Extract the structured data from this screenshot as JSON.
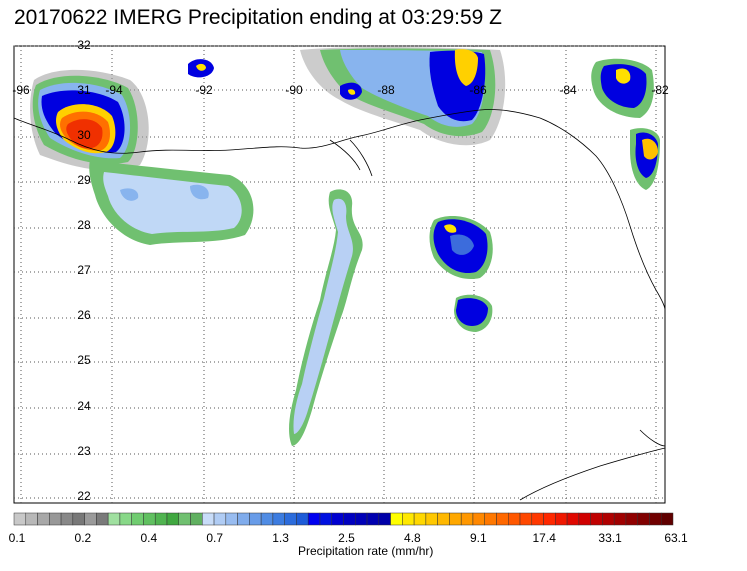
{
  "title": "20170622 IMERG Precipitation ending at 03:29:59 Z",
  "map": {
    "lon_labels": [
      "-96",
      "-94",
      "-92",
      "-90",
      "-88",
      "-86",
      "-84",
      "-82"
    ],
    "lat_labels": [
      "32",
      "31",
      "30",
      "29",
      "28",
      "27",
      "26",
      "25",
      "24",
      "23",
      "22"
    ]
  },
  "colorbar": {
    "title": "Precipitation rate (mm/hr)",
    "tick_labels": [
      "0.1",
      "0.2",
      "0.4",
      "0.7",
      "1.3",
      "2.5",
      "4.8",
      "9.1",
      "17.4",
      "33.1",
      "63.1"
    ],
    "colors": [
      "#c8c8c8",
      "#b8b8b8",
      "#a8a8a8",
      "#989898",
      "#888888",
      "#787878",
      "#9a9a9a",
      "#7a7a7a",
      "#a0e0a0",
      "#88d888",
      "#70cc70",
      "#60c060",
      "#50b450",
      "#40a840",
      "#70c070",
      "#60b060",
      "#c8dcf8",
      "#b0ccf4",
      "#98bcf0",
      "#80acec",
      "#689ce8",
      "#508ce4",
      "#3c7ce0",
      "#2c6cdc",
      "#1e5cd8",
      "#0000f0",
      "#0010e0",
      "#0000d0",
      "#0000c0",
      "#0000b8",
      "#0000b0",
      "#0000a8",
      "#ffff00",
      "#ffe800",
      "#ffd800",
      "#ffc800",
      "#ffb800",
      "#ffa800",
      "#ff9800",
      "#ff8800",
      "#ff7800",
      "#ff6800",
      "#ff5800",
      "#ff4800",
      "#ff3800",
      "#ff2800",
      "#f01800",
      "#e00800",
      "#d00000",
      "#c00000",
      "#b00000",
      "#a00000",
      "#900000",
      "#800000",
      "#700000",
      "#600000"
    ]
  }
}
